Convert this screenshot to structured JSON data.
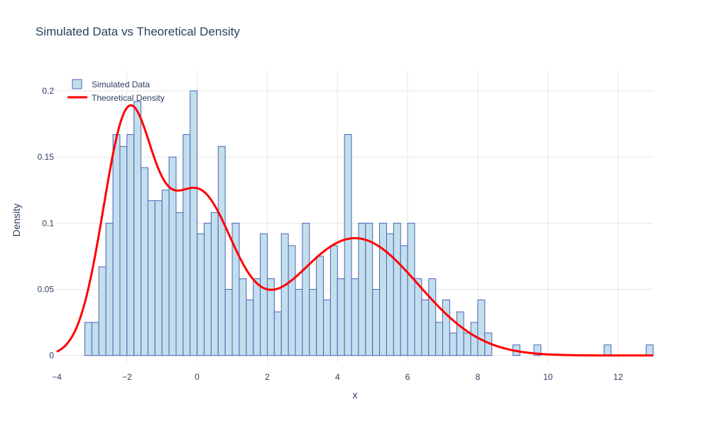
{
  "chart_data": {
    "type": "bar",
    "title": "Simulated Data vs Theoretical Density",
    "xlabel": "x",
    "ylabel": "Density",
    "xlim": [
      -4,
      13
    ],
    "ylim": [
      -0.005,
      0.215
    ],
    "x_ticks": [
      -4,
      -2,
      0,
      2,
      4,
      6,
      8,
      10,
      12
    ],
    "y_ticks": [
      0,
      0.05,
      0.1,
      0.15,
      0.2
    ],
    "y_tick_labels": [
      "0",
      "0.05",
      "0.1",
      "0.15",
      "0.2"
    ],
    "grid": true,
    "legend_position": "top-left",
    "histogram": {
      "name": "Simulated Data",
      "bin_start": -3.2,
      "bin_width": 0.2,
      "fill_color": "#c3dfed",
      "line_color": "#4b63b8",
      "values": [
        0.025,
        0.025,
        0.067,
        0.1,
        0.167,
        0.158,
        0.167,
        0.192,
        0.142,
        0.117,
        0.117,
        0.125,
        0.15,
        0.108,
        0.167,
        0.2,
        0.092,
        0.1,
        0.108,
        0.158,
        0.05,
        0.1,
        0.058,
        0.042,
        0.058,
        0.092,
        0.058,
        0.033,
        0.092,
        0.083,
        0.05,
        0.1,
        0.05,
        0.075,
        0.042,
        0.083,
        0.058,
        0.167,
        0.058,
        0.1,
        0.1,
        0.05,
        0.1,
        0.092,
        0.1,
        0.083,
        0.1,
        0.058,
        0.042,
        0.058,
        0.025,
        0.042,
        0.017,
        0.033,
        0.017,
        0.025,
        0.042,
        0.017,
        0,
        0,
        0,
        0.008,
        0,
        0,
        0.008,
        0,
        0,
        0,
        0,
        0,
        0,
        0,
        0,
        0,
        0.008,
        0,
        0,
        0,
        0,
        0,
        0.008
      ]
    },
    "series": [
      {
        "name": "Theoretical Density",
        "color": "#ff0000",
        "components": [
          {
            "weight": 0.3,
            "mean": -2.0,
            "sd": 0.7
          },
          {
            "weight": 0.3,
            "mean": 0.0,
            "sd": 1.0
          },
          {
            "weight": 0.4,
            "mean": 4.5,
            "sd": 1.8
          }
        ]
      }
    ]
  }
}
